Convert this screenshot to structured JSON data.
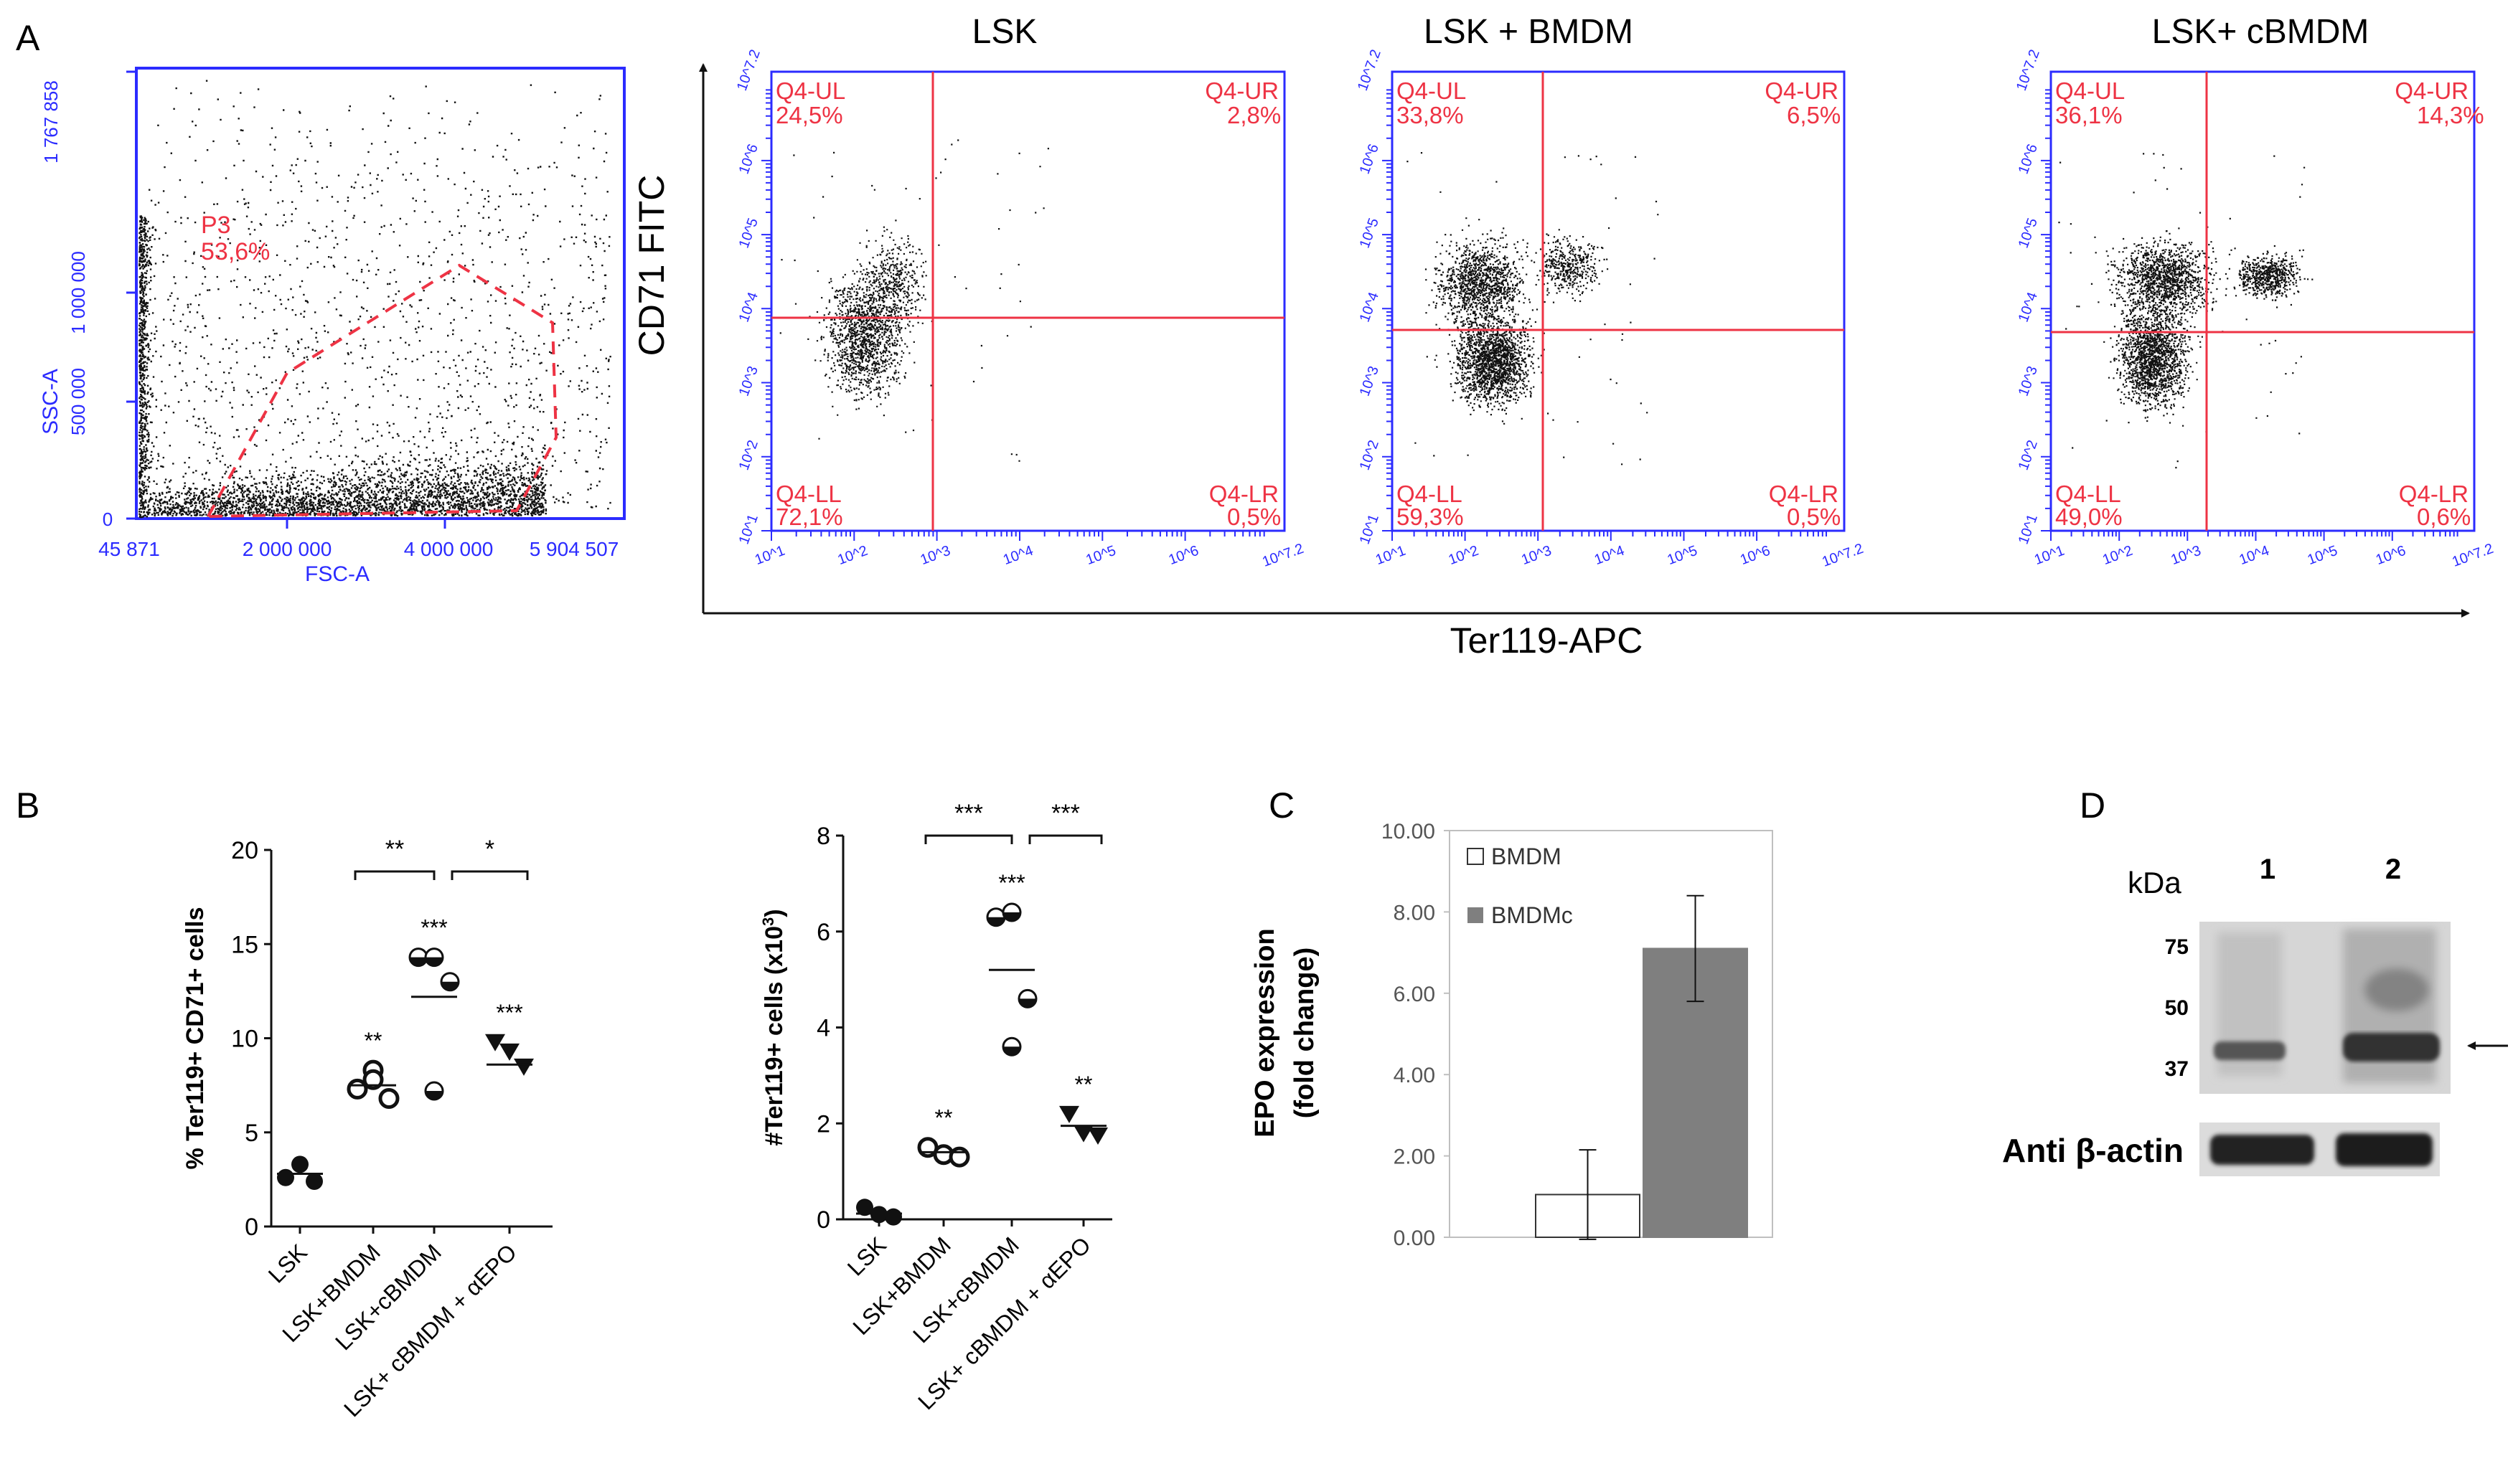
{
  "colors": {
    "blue": "#2b2bff",
    "red": "#ee3344",
    "black": "#111111",
    "grey": "#7f7f7f",
    "white": "#ffffff"
  },
  "panelA": {
    "label": "A",
    "gate_plot": {
      "xlabel": "FSC-A",
      "ylabel": "SSC-A",
      "xticks": [
        "45 871",
        "2 000 000",
        "4 000 000",
        "5 904 507"
      ],
      "yticks": [
        "0",
        "500 000",
        "1 000 000",
        "1 767 858"
      ],
      "gate_name": "P3",
      "gate_pct": "53,6%"
    },
    "flow_ylabel": "CD71 FITC",
    "flow_xlabel": "Ter119-APC",
    "log_ticks": [
      "10^1",
      "10^2",
      "10^3",
      "10^4",
      "10^5",
      "10^6",
      "10^7.2"
    ],
    "plots": [
      {
        "title": "LSK",
        "ul": "24,5%",
        "ur": "2,8%",
        "ll": "72,1%",
        "lr": "0,5%"
      },
      {
        "title": "LSK + BMDM",
        "ul": "33,8%",
        "ur": "6,5%",
        "ll": "59,3%",
        "lr": "0,5%"
      },
      {
        "title": "LSK+ cBMDM",
        "ul": "36,1%",
        "ur": "14,3%",
        "ll": "49,0%",
        "lr": "0,6%"
      }
    ],
    "quad_names": {
      "ul": "Q4-UL",
      "ur": "Q4-UR",
      "ll": "Q4-LL",
      "lr": "Q4-LR"
    }
  },
  "panelB": {
    "label": "B",
    "categories": [
      "LSK",
      "LSK+BMDM",
      "LSK+cBMDM",
      "LSK+ cBMDM + αEPO"
    ],
    "left": {
      "ylabel": "% Ter119+ CD71+ cells",
      "ylim": [
        0,
        20
      ],
      "yticks": [
        "0",
        "5",
        "10",
        "15",
        "20"
      ],
      "points": [
        [
          2.6,
          3.3,
          2.4
        ],
        [
          7.3,
          8.3,
          6.8,
          7.8
        ],
        [
          14.3,
          14.3,
          13.0,
          7.2
        ],
        [
          9.8,
          9.3,
          8.5
        ]
      ],
      "means": [
        2.8,
        7.5,
        12.2,
        8.6
      ],
      "stars": [
        "",
        "**",
        "***",
        "***"
      ],
      "brackets": [
        {
          "text": "**"
        },
        {
          "text": "*"
        }
      ]
    },
    "right": {
      "ylabel": "#Ter119+ cells (x10",
      "ylabel_sup": "3",
      "ylabel_end": ")",
      "ylim": [
        0,
        8
      ],
      "yticks": [
        "0",
        "2",
        "4",
        "6",
        "8"
      ],
      "points": [
        [
          0.25,
          0.1,
          0.05
        ],
        [
          1.5,
          1.35,
          1.3
        ],
        [
          6.3,
          6.4,
          4.6,
          3.6
        ],
        [
          2.2,
          1.8,
          1.75
        ]
      ],
      "means": [
        0.12,
        1.4,
        5.2,
        1.95
      ],
      "stars": [
        "",
        "**",
        "***",
        "**"
      ],
      "brackets": [
        {
          "text": "***"
        },
        {
          "text": "***"
        }
      ]
    }
  },
  "panelC": {
    "label": "C",
    "chart_data": {
      "type": "bar",
      "categories": [
        "BMDM",
        "BMDMc"
      ],
      "values": [
        1.05,
        7.1
      ],
      "errors": [
        1.1,
        1.3
      ],
      "ylim": [
        0,
        10
      ],
      "yticks": [
        "0.00",
        "2.00",
        "4.00",
        "6.00",
        "8.00",
        "10.00"
      ],
      "ylabel1": "EPO expression",
      "ylabel2": "(fold change)",
      "legend": [
        "BMDM",
        "BMDMc"
      ]
    }
  },
  "panelD": {
    "label": "D",
    "lanes": [
      "1",
      "2"
    ],
    "kda_label": "kDa",
    "markers": [
      "75",
      "50",
      "37"
    ],
    "actin_label": "Anti β-actin"
  }
}
